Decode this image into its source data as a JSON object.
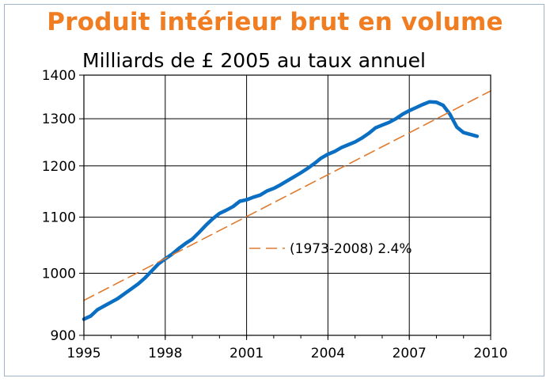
{
  "title": "Produit intérieur brut en volume",
  "subtitle": "Milliards de £ 2005 au taux annuel",
  "colors": {
    "title": "#f07d22",
    "gdp_line": "#0a6fc2",
    "trend_line": "#e07a2e",
    "frame": "#9fb4c8"
  },
  "chart_data": {
    "type": "line",
    "title": "Produit intérieur brut en volume",
    "ylabel": "Milliards de £ 2005 au taux annuel",
    "xlabel": "",
    "x_ticks": [
      "1995",
      "1998",
      "2001",
      "2004",
      "2007",
      "2010"
    ],
    "y_ticks": [
      "900",
      "1000",
      "1100",
      "1200",
      "1300",
      "1400"
    ],
    "xlim": [
      1995,
      2010
    ],
    "ylim": [
      900,
      1400
    ],
    "y_scale": "log",
    "grid": true,
    "legend": "middle-right",
    "series": [
      {
        "style": "solid",
        "color": "#0a6fc2",
        "x": [
          1995.0,
          1995.25,
          1995.5,
          1995.75,
          1996.0,
          1996.25,
          1996.5,
          1996.75,
          1997.0,
          1997.25,
          1997.5,
          1997.75,
          1998.0,
          1998.25,
          1998.5,
          1998.75,
          1999.0,
          1999.25,
          1999.5,
          1999.75,
          2000.0,
          2000.25,
          2000.5,
          2000.75,
          2001.0,
          2001.25,
          2001.5,
          2001.75,
          2002.0,
          2002.25,
          2002.5,
          2002.75,
          2003.0,
          2003.25,
          2003.5,
          2003.75,
          2004.0,
          2004.25,
          2004.5,
          2004.75,
          2005.0,
          2005.25,
          2005.5,
          2005.75,
          2006.0,
          2006.25,
          2006.5,
          2006.75,
          2007.0,
          2007.25,
          2007.5,
          2007.75,
          2008.0,
          2008.25,
          2008.5,
          2008.75,
          2009.0,
          2009.25,
          2009.5
        ],
        "y": [
          925,
          930,
          940,
          946,
          952,
          958,
          966,
          974,
          982,
          992,
          1004,
          1016,
          1025,
          1033,
          1043,
          1052,
          1060,
          1072,
          1085,
          1097,
          1107,
          1113,
          1120,
          1130,
          1133,
          1138,
          1142,
          1150,
          1155,
          1162,
          1170,
          1178,
          1186,
          1195,
          1205,
          1216,
          1224,
          1230,
          1238,
          1244,
          1250,
          1258,
          1268,
          1280,
          1286,
          1292,
          1300,
          1310,
          1318,
          1325,
          1332,
          1338,
          1337,
          1330,
          1310,
          1282,
          1270,
          1266,
          1262
        ]
      },
      {
        "name": "(1973-2008) 2.4%",
        "style": "dashed",
        "color": "#e07a2e",
        "x": [
          1995,
          2010
        ],
        "y": [
          955,
          1363
        ]
      }
    ]
  }
}
